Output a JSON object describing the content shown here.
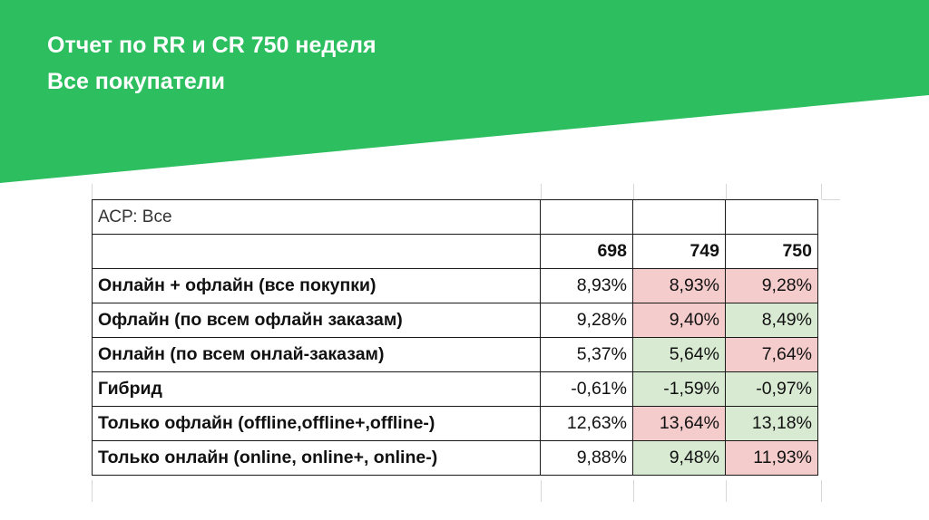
{
  "slide": {
    "title_line1": "Отчет по RR и CR 750 неделя",
    "title_line2": "Все покупатели",
    "accent_color": "#2dbe60"
  },
  "table": {
    "corner_label": "АСР: Все",
    "columns": [
      "698",
      "749",
      "750"
    ],
    "rows": [
      {
        "label": "Онлайн + офлайн  (все покупки)",
        "values": [
          "8,93%",
          "8,93%",
          "9,28%"
        ],
        "colors": [
          "none",
          "red",
          "red"
        ]
      },
      {
        "label": "Офлайн (по всем офлайн заказам)",
        "values": [
          "9,28%",
          "9,40%",
          "8,49%"
        ],
        "colors": [
          "none",
          "red",
          "green"
        ]
      },
      {
        "label": "Онлайн (по всем онлай-заказам)",
        "values": [
          "5,37%",
          "5,64%",
          "7,64%"
        ],
        "colors": [
          "none",
          "green",
          "red"
        ]
      },
      {
        "label": "Гибрид",
        "values": [
          "-0,61%",
          "-1,59%",
          "-0,97%"
        ],
        "colors": [
          "none",
          "green",
          "green"
        ]
      },
      {
        "label": "Только офлайн (offline,offline+,offline-)",
        "values": [
          "12,63%",
          "13,64%",
          "13,18%"
        ],
        "colors": [
          "none",
          "red",
          "green"
        ]
      },
      {
        "label": "Только онлайн (online, online+, online-)",
        "values": [
          "9,88%",
          "9,48%",
          "11,93%"
        ],
        "colors": [
          "none",
          "green",
          "red"
        ]
      }
    ],
    "highlight_colors": {
      "red": "#f4cccc",
      "green": "#d9ead3"
    }
  }
}
